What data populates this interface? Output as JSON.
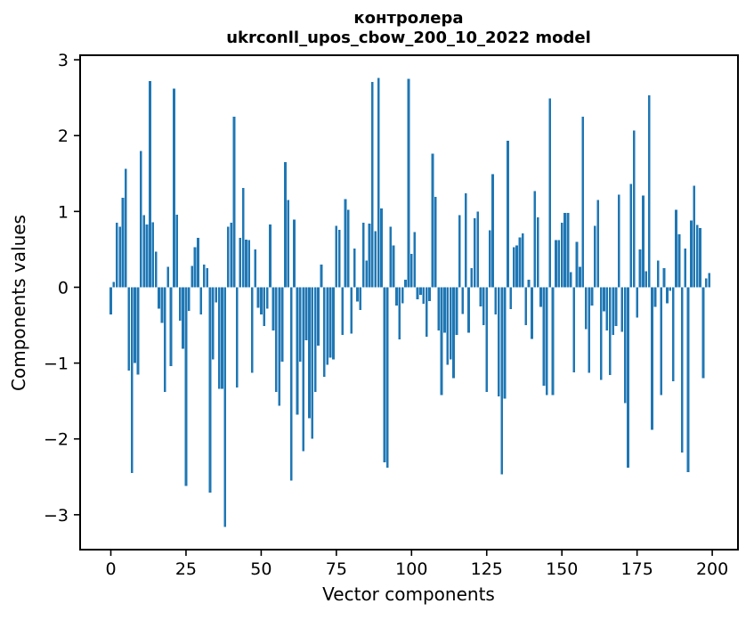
{
  "figure": {
    "title_line1": "контролера",
    "title_line2": "ukrconll_upos_cbow_200_10_2022 model"
  },
  "chart_data": {
    "type": "bar",
    "title": "контролера",
    "subtitle": "ukrconll_upos_cbow_200_10_2022 model",
    "xlabel": "Vector components",
    "ylabel": "Components values",
    "bar_color": "#1f77b4",
    "axis_color": "#000000",
    "grid": false,
    "legend": null,
    "x_start": 0,
    "x_ticks": [
      0,
      25,
      50,
      75,
      100,
      125,
      150,
      175,
      200
    ],
    "x_tick_labels": [
      "0",
      "25",
      "50",
      "75",
      "100",
      "125",
      "150",
      "175",
      "200"
    ],
    "y_ticks": [
      3,
      2,
      1,
      0,
      -1,
      -2,
      -3
    ],
    "y_tick_labels": [
      "3",
      "2",
      "1",
      "0",
      "−1",
      "−2",
      "−3"
    ],
    "xlim": [
      -10.2,
      208.6
    ],
    "ylim": [
      -3.46,
      3.06
    ],
    "values": [
      -0.36,
      0.07,
      0.85,
      0.8,
      1.18,
      1.56,
      -1.1,
      -2.45,
      -1.0,
      -1.15,
      1.8,
      0.95,
      0.83,
      2.72,
      0.86,
      0.47,
      -0.28,
      -0.47,
      -1.38,
      0.27,
      -1.04,
      2.62,
      0.96,
      -0.44,
      -0.81,
      -2.62,
      -0.31,
      0.28,
      0.53,
      0.65,
      -0.36,
      0.3,
      0.25,
      -2.71,
      -0.95,
      -0.2,
      -1.34,
      -1.34,
      -3.16,
      0.8,
      0.85,
      2.25,
      -1.32,
      0.65,
      1.31,
      0.63,
      0.62,
      -1.13,
      0.5,
      -0.27,
      -0.36,
      -0.51,
      -0.28,
      0.83,
      -0.57,
      -1.38,
      -1.56,
      -0.98,
      1.65,
      1.15,
      -2.55,
      0.89,
      -1.68,
      -0.98,
      -2.16,
      -0.7,
      -1.73,
      -2.0,
      -1.38,
      -0.77,
      0.3,
      -1.18,
      -1.02,
      -0.93,
      -0.95,
      0.81,
      0.76,
      -0.63,
      1.16,
      1.02,
      -0.61,
      0.51,
      -0.19,
      -0.3,
      0.85,
      0.35,
      0.84,
      2.71,
      0.74,
      2.76,
      1.04,
      -2.31,
      -2.38,
      0.8,
      0.55,
      -0.24,
      -0.69,
      -0.21,
      0.1,
      2.75,
      0.44,
      0.73,
      -0.16,
      -0.1,
      -0.22,
      -0.65,
      -0.18,
      1.76,
      1.19,
      -0.57,
      -1.42,
      -0.6,
      -1.02,
      -0.95,
      -1.2,
      -0.63,
      0.95,
      -0.35,
      1.24,
      -0.6,
      0.25,
      0.91,
      1.0,
      -0.25,
      -0.5,
      -1.38,
      0.75,
      1.49,
      -0.36,
      -1.44,
      -2.47,
      -1.47,
      1.93,
      -0.29,
      0.53,
      0.55,
      0.66,
      0.71,
      -0.5,
      0.1,
      -0.68,
      1.27,
      0.92,
      -0.26,
      -1.3,
      -1.42,
      2.49,
      -1.42,
      0.62,
      0.62,
      0.85,
      0.98,
      0.98,
      0.2,
      -1.12,
      0.6,
      0.27,
      2.25,
      -0.55,
      -1.13,
      -0.24,
      0.81,
      1.15,
      -1.22,
      -0.32,
      -0.57,
      -1.16,
      -0.63,
      -0.51,
      1.22,
      -0.59,
      -1.53,
      -2.38,
      1.36,
      2.07,
      -0.4,
      0.5,
      1.21,
      0.21,
      2.53,
      -1.88,
      -0.26,
      0.35,
      -1.42,
      0.25,
      -0.21,
      -0.05,
      -1.24,
      1.02,
      0.7,
      -2.18,
      0.51,
      -2.44,
      0.88,
      1.34,
      0.82,
      0.78,
      -1.2,
      0.12,
      0.19
    ]
  }
}
